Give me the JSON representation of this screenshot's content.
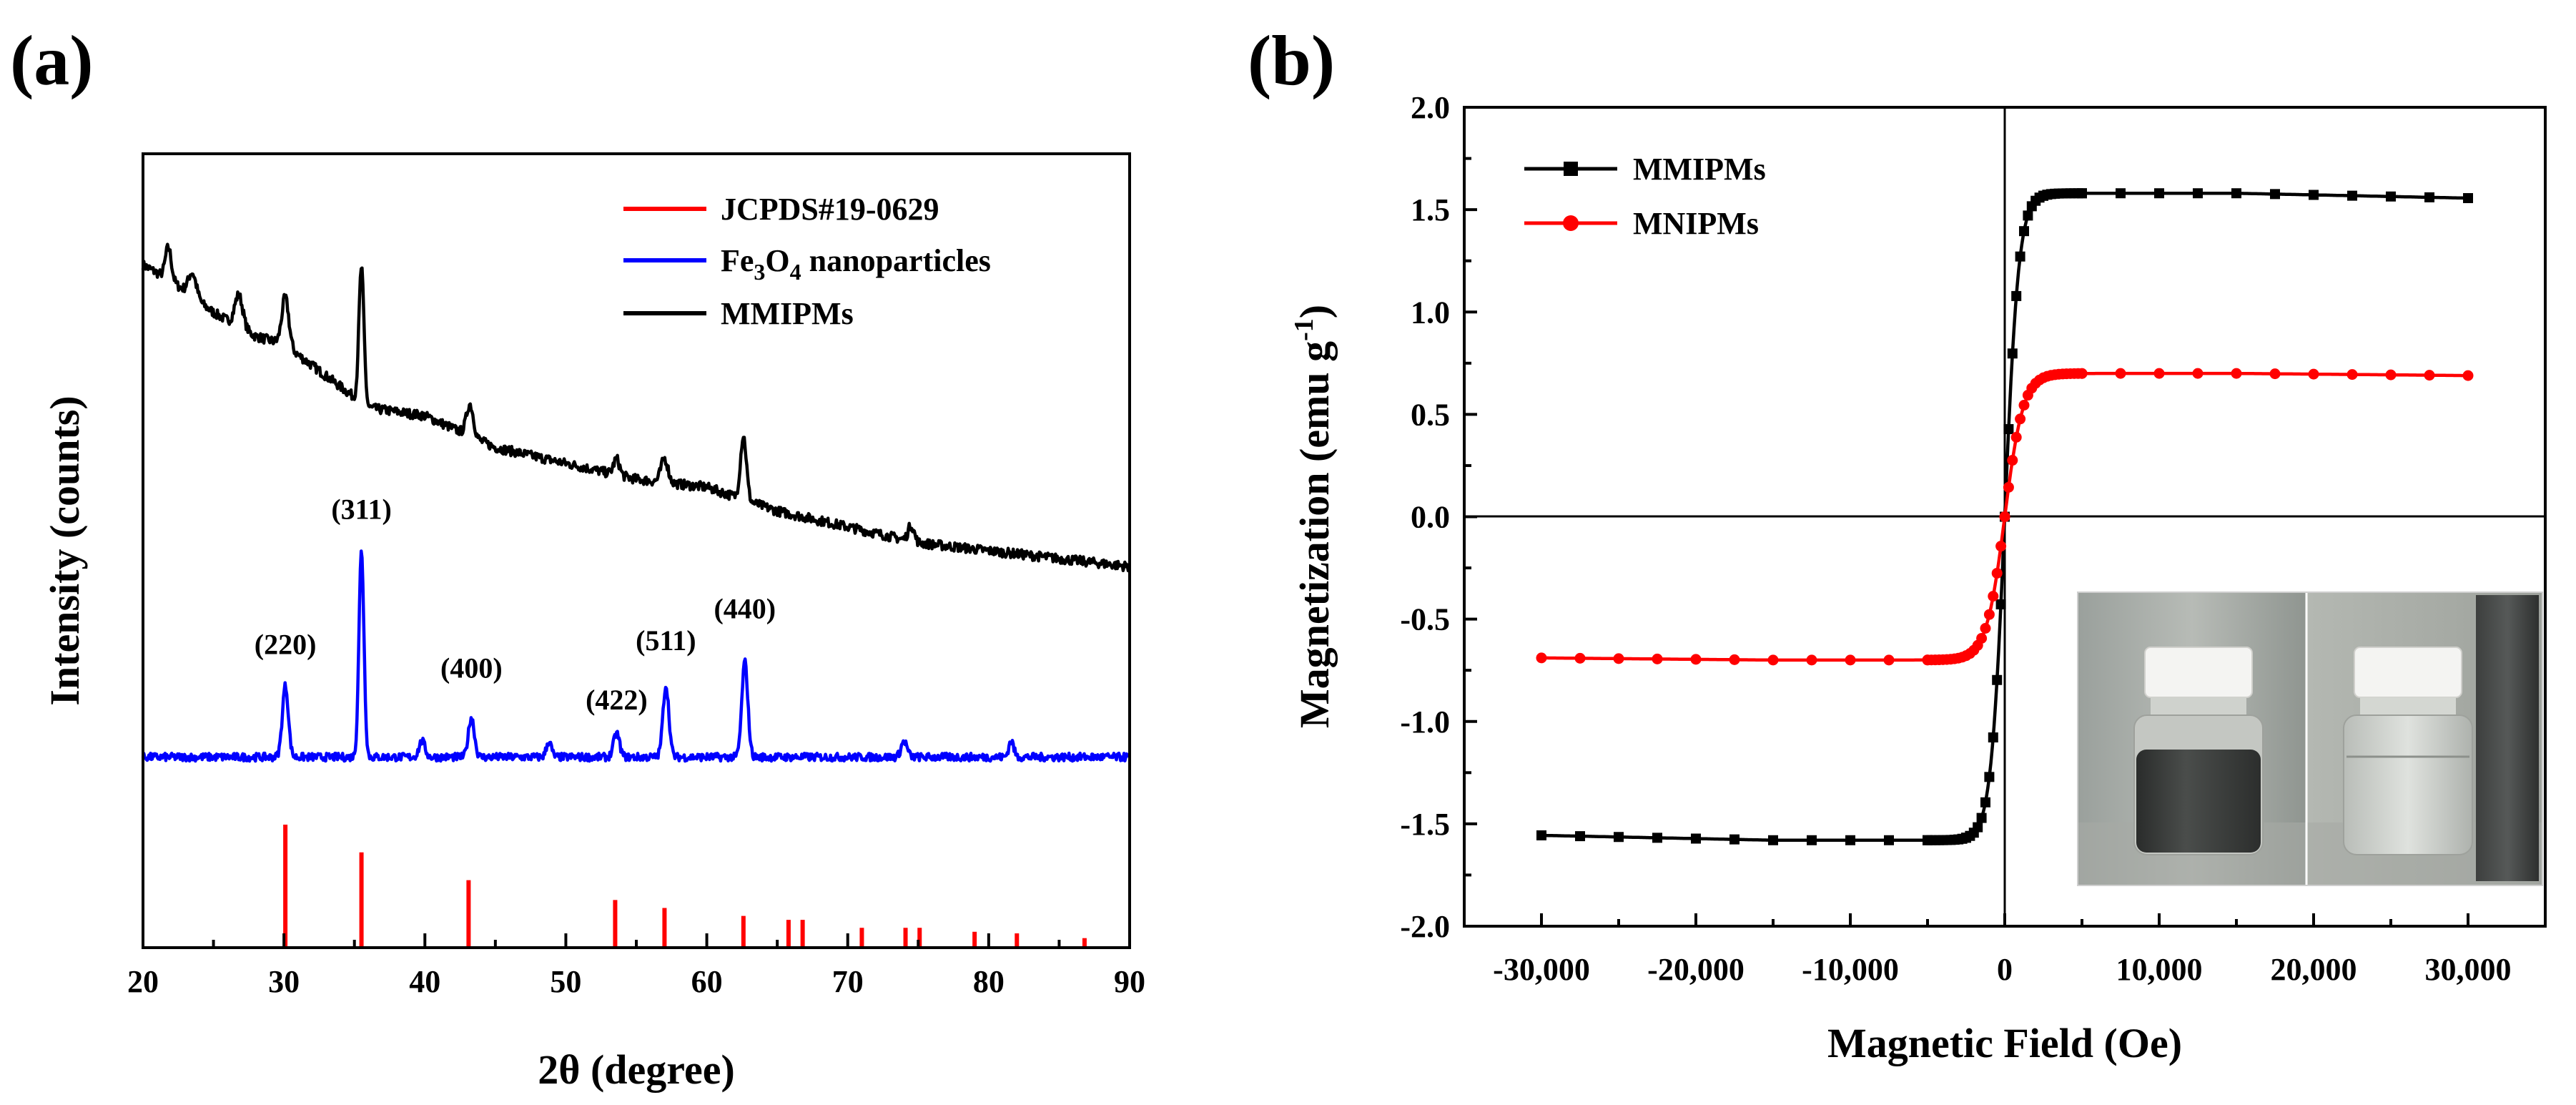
{
  "chart_data": [
    {
      "id": "a",
      "panel_label": "(a)",
      "type": "line",
      "xlabel": "2θ (degree)",
      "ylabel": "Intensity (counts)",
      "xlim": [
        20,
        90
      ],
      "xticks": [
        20,
        30,
        40,
        50,
        60,
        70,
        80,
        90
      ],
      "legend_position": "top-right",
      "legend": [
        {
          "label": "JCPDS#19-0629",
          "color": "#ff0000"
        },
        {
          "label_main": "Fe",
          "sub1": "3",
          "label_mid": "O",
          "sub2": "4",
          "label_end": " nanoparticles",
          "color": "#0000ff"
        },
        {
          "label": "MMIPMs",
          "color": "#000000"
        }
      ],
      "series": [
        {
          "name": "MMIPMs",
          "color": "#000000",
          "baseline": [
            [
              20,
              0.86
            ],
            [
              22,
              0.84
            ],
            [
              25,
              0.8
            ],
            [
              28,
              0.77
            ],
            [
              30,
              0.76
            ],
            [
              33,
              0.72
            ],
            [
              36,
              0.68
            ],
            [
              40,
              0.67
            ],
            [
              45,
              0.63
            ],
            [
              50,
              0.61
            ],
            [
              55,
              0.59
            ],
            [
              60,
              0.58
            ],
            [
              65,
              0.55
            ],
            [
              70,
              0.53
            ],
            [
              75,
              0.51
            ],
            [
              80,
              0.5
            ],
            [
              85,
              0.49
            ],
            [
              90,
              0.48
            ]
          ],
          "peaks": [
            [
              21.8,
              0.04,
              0.3
            ],
            [
              23.5,
              0.03,
              0.4
            ],
            [
              26.8,
              0.04,
              0.4
            ],
            [
              30.1,
              0.06,
              0.35
            ],
            [
              35.5,
              0.17,
              0.25
            ],
            [
              43.2,
              0.04,
              0.35
            ],
            [
              53.6,
              0.02,
              0.3
            ],
            [
              57.0,
              0.03,
              0.35
            ],
            [
              62.6,
              0.08,
              0.3
            ],
            [
              74.5,
              0.02,
              0.3
            ]
          ]
        },
        {
          "name": "Fe3O4 nanoparticles",
          "color": "#0000ff",
          "baseline": [
            [
              20,
              0.24
            ],
            [
              90,
              0.24
            ]
          ],
          "peaks": [
            [
              30.1,
              0.09,
              0.3
            ],
            [
              35.5,
              0.26,
              0.25
            ],
            [
              39.8,
              0.02,
              0.3
            ],
            [
              43.3,
              0.05,
              0.3
            ],
            [
              48.8,
              0.02,
              0.25
            ],
            [
              53.6,
              0.03,
              0.3
            ],
            [
              57.1,
              0.09,
              0.3
            ],
            [
              62.7,
              0.12,
              0.3
            ],
            [
              74.0,
              0.02,
              0.3
            ],
            [
              81.6,
              0.02,
              0.25
            ]
          ]
        }
      ],
      "reference_bars": {
        "name": "JCPDS#19-0629",
        "color": "#ff0000",
        "positions": [
          30.1,
          35.5,
          43.1,
          53.5,
          57.0,
          62.6,
          65.8,
          66.8,
          71.0,
          74.1,
          75.1,
          79.0,
          82.0,
          86.8
        ],
        "heights": [
          0.155,
          0.12,
          0.085,
          0.06,
          0.05,
          0.04,
          0.035,
          0.035,
          0.025,
          0.025,
          0.025,
          0.02,
          0.018,
          0.012
        ]
      },
      "annotations": [
        {
          "text": "(220)",
          "x": 30.1,
          "y": 0.37
        },
        {
          "text": "(311)",
          "x": 35.5,
          "y": 0.54
        },
        {
          "text": "(400)",
          "x": 43.3,
          "y": 0.34
        },
        {
          "text": "(422)",
          "x": 53.6,
          "y": 0.3
        },
        {
          "text": "(511)",
          "x": 57.1,
          "y": 0.375
        },
        {
          "text": "(440)",
          "x": 62.7,
          "y": 0.415
        }
      ]
    },
    {
      "id": "b",
      "panel_label": "(b)",
      "type": "line",
      "xlabel": "Magnetic Field (Oe)",
      "ylabel_main": "Magnetization (emu g",
      "ylabel_sup": "-1",
      "ylabel_end": ")",
      "xlim": [
        -35000,
        35000
      ],
      "ylim": [
        -2.0,
        2.0
      ],
      "xticks": [
        -30000,
        -20000,
        -10000,
        0,
        10000,
        20000,
        30000
      ],
      "xtick_labels": [
        "-30,000",
        "-20,000",
        "-10,000",
        "0",
        "10,000",
        "20,000",
        "30,000"
      ],
      "yticks": [
        -2.0,
        -1.5,
        -1.0,
        -0.5,
        0.0,
        0.5,
        1.0,
        1.5,
        2.0
      ],
      "ytick_labels": [
        "-2.0",
        "-1.5",
        "-1.0",
        "-0.5",
        "0.0",
        "0.5",
        "1.0",
        "1.5",
        "2.0"
      ],
      "legend_position": "top-left",
      "series": [
        {
          "name": "MMIPMs",
          "color": "#000000",
          "marker": "square",
          "saturation": 1.58,
          "half_field": 900
        },
        {
          "name": "MNIPMs",
          "color": "#ff0000",
          "marker": "circle",
          "saturation": 0.7,
          "half_field": 1200
        }
      ],
      "inset_photo": {
        "vials": 2,
        "left_content": "dark dispersed suspension",
        "right_content": "clear liquid beside magnet"
      }
    }
  ]
}
